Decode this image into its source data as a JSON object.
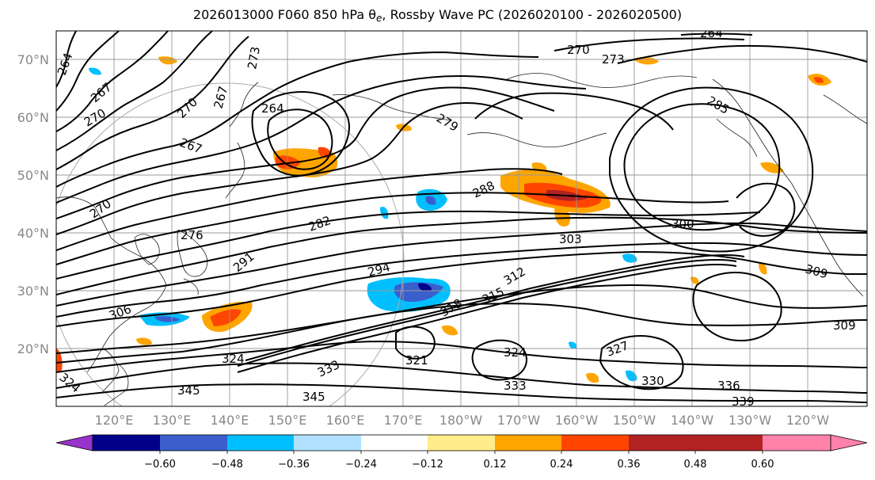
{
  "title_parts": {
    "main": "2026013000 F060 850 hPa ",
    "theta": "θ",
    "theta_sub": "e",
    "tail": ", Rossby Wave PC (2026020100 - 2026020500)"
  },
  "lat_labels": [
    "70°N",
    "60°N",
    "50°N",
    "40°N",
    "30°N",
    "20°N"
  ],
  "lon_labels": [
    "120°E",
    "130°E",
    "140°E",
    "150°E",
    "160°E",
    "170°E",
    "180°W",
    "170°W",
    "160°W",
    "150°W",
    "140°W",
    "130°W",
    "120°W"
  ],
  "contour_labels": [
    "264",
    "267",
    "270",
    "273",
    "276",
    "279",
    "282",
    "285",
    "288",
    "291",
    "294",
    "300",
    "303",
    "306",
    "309",
    "312",
    "315",
    "318",
    "321",
    "324",
    "327",
    "330",
    "333",
    "336",
    "339",
    "345"
  ],
  "colorbar": {
    "colors": [
      "#9932cc",
      "#00008b",
      "#3a5fcd",
      "#00bfff",
      "#b0e2ff",
      "#ffffff",
      "#ffec8b",
      "#ffa500",
      "#ff4500",
      "#b22222",
      "#ff82ab"
    ],
    "ticks": [
      "−0.60",
      "−0.48",
      "−0.36",
      "−0.24",
      "−0.12",
      "0.12",
      "0.24",
      "0.36",
      "0.48",
      "0.60"
    ]
  }
}
